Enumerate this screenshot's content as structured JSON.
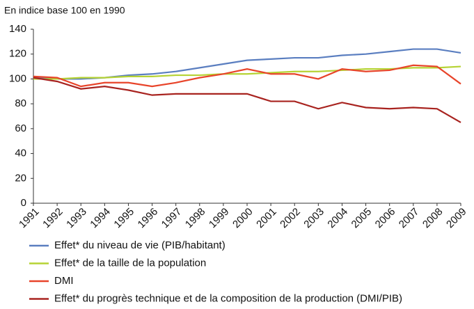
{
  "chart_data": {
    "type": "line",
    "y_label": "En indice base 100 en 1990",
    "categories": [
      "1991",
      "1992",
      "1993",
      "1994",
      "1995",
      "1996",
      "1997",
      "1998",
      "1999",
      "2000",
      "2001",
      "2002",
      "2003",
      "2004",
      "2005",
      "2006",
      "2007",
      "2008",
      "2009"
    ],
    "series": [
      {
        "name": "Effet* du niveau de vie (PIB/habitant)",
        "color": "#5a7ec0",
        "values": [
          101,
          100,
          100,
          101,
          103,
          104,
          106,
          109,
          112,
          115,
          116,
          117,
          117,
          119,
          120,
          122,
          124,
          124,
          121
        ]
      },
      {
        "name": "Effet* de la taille de la population",
        "color": "#b6d334",
        "values": [
          100,
          100,
          101,
          101,
          102,
          102,
          103,
          103,
          104,
          104,
          105,
          106,
          106,
          107,
          108,
          108,
          109,
          109,
          110
        ]
      },
      {
        "name": "DMI",
        "color": "#e8442a",
        "values": [
          102,
          101,
          94,
          97,
          97,
          94,
          97,
          101,
          104,
          108,
          104,
          104,
          100,
          108,
          106,
          107,
          111,
          110,
          96
        ]
      },
      {
        "name": "Effet* du progrès technique et de la composition de la production (DMI/PIB)",
        "color": "#a8231f",
        "values": [
          101,
          98,
          92,
          94,
          91,
          87,
          88,
          88,
          88,
          88,
          82,
          82,
          76,
          81,
          77,
          76,
          77,
          76,
          65
        ]
      }
    ],
    "ylim": [
      0,
      140
    ],
    "yticks": [
      0,
      20,
      40,
      60,
      80,
      100,
      120,
      140
    ],
    "grid": false
  }
}
